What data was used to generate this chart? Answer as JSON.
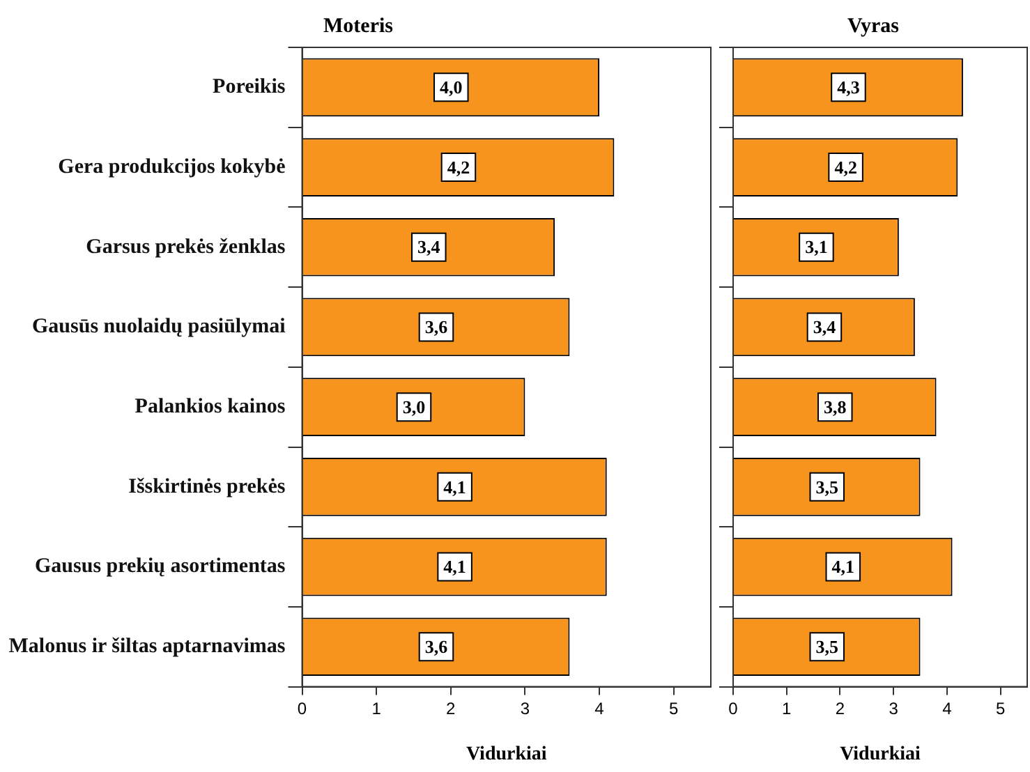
{
  "chart_data": [
    {
      "type": "bar",
      "orientation": "horizontal",
      "title": "Moteris",
      "xlabel": "Vidurkiai",
      "categories": [
        "Poreikis",
        "Gera produkcijos kokybė",
        "Garsus prekės ženklas",
        "Gausūs nuolaidų pasiūlymai",
        "Palankios kainos",
        "Išskirtinės prekės",
        "Gausus prekių asortimentas",
        "Malonus ir šiltas aptarnavimas"
      ],
      "values": [
        4.0,
        4.2,
        3.4,
        3.6,
        3.0,
        4.1,
        4.1,
        3.6
      ],
      "value_labels": [
        "4,0",
        "4,2",
        "3,4",
        "3,6",
        "3,0",
        "4,1",
        "4,1",
        "3,6"
      ],
      "color": "#f7941d",
      "xlim": [
        0,
        5.5
      ],
      "xticks": [
        0,
        1,
        2,
        3,
        4,
        5
      ]
    },
    {
      "type": "bar",
      "orientation": "horizontal",
      "title": "Vyras",
      "xlabel": "Vidurkiai",
      "categories": [
        null,
        null,
        null,
        null,
        null,
        null,
        null,
        null
      ],
      "values": [
        4.3,
        4.2,
        3.1,
        3.4,
        3.8,
        3.5,
        4.1,
        3.5
      ],
      "value_labels": [
        "4,3",
        "4,2",
        "3,1",
        "3,4",
        "3,8",
        "3,5",
        "4,1",
        "3,5"
      ],
      "color": "#f7941d",
      "xlim": [
        0,
        5.5
      ],
      "xticks": [
        0,
        1,
        2,
        3,
        4,
        5
      ],
      "tick_labels": "x"
    }
  ]
}
